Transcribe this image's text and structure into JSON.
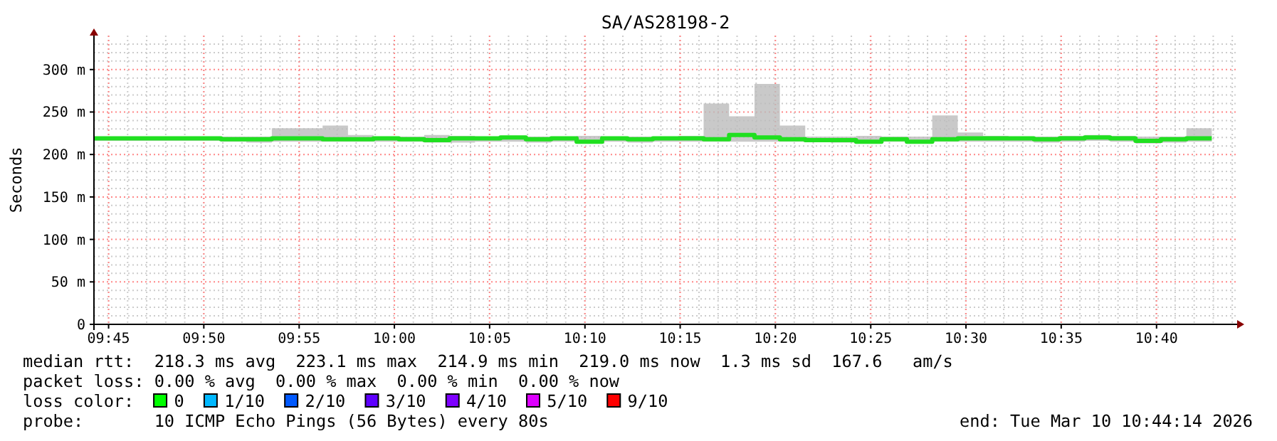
{
  "chart_data": {
    "type": "step",
    "title": "SA/AS28198-2",
    "ylabel": "Seconds",
    "x": [
      9.7372,
      9.7594,
      9.7817,
      9.8039,
      9.8261,
      9.8483,
      9.8705,
      9.8928,
      9.915,
      9.9372,
      9.9594,
      9.9817,
      10.0039,
      10.0261,
      10.0483,
      10.0705,
      10.0928,
      10.115,
      10.1372,
      10.1594,
      10.1817,
      10.2039,
      10.2261,
      10.2483,
      10.2705,
      10.2928,
      10.315,
      10.3372,
      10.3594,
      10.3817,
      10.4039,
      10.4261,
      10.4483,
      10.4705,
      10.4928,
      10.515,
      10.5372,
      10.5594,
      10.5817,
      10.6039,
      10.6261,
      10.6483,
      10.6705,
      10.6928,
      10.715
    ],
    "series": [
      {
        "color": "#20e020",
        "values": [
          219,
          219,
          219,
          219,
          219,
          218,
          218,
          219,
          219,
          218,
          218,
          219,
          218,
          217,
          219,
          219,
          220,
          218,
          219,
          215,
          219,
          218,
          219,
          219,
          218,
          223,
          220,
          218,
          217,
          217,
          215,
          218,
          215,
          218,
          219,
          219,
          219,
          218,
          219,
          220,
          219,
          216,
          218,
          219,
          219
        ],
        "lower": [
          216,
          216,
          216,
          216,
          216,
          215,
          214,
          215,
          215,
          215,
          215,
          215,
          215,
          214,
          214,
          215,
          215,
          214,
          215,
          213,
          215,
          214,
          215,
          215,
          215,
          215,
          215,
          215,
          215,
          214,
          213,
          215,
          213,
          215,
          215,
          215,
          215,
          214,
          215,
          216,
          215,
          213,
          214,
          215,
          215
        ],
        "upper": [
          221,
          221,
          221,
          221,
          221,
          221,
          221,
          231,
          231,
          234,
          223,
          221,
          221,
          223,
          222,
          221,
          222,
          221,
          221,
          222,
          221,
          221,
          221,
          222,
          260,
          245,
          283,
          234,
          221,
          221,
          222,
          221,
          221,
          246,
          226,
          222,
          221,
          221,
          222,
          223,
          222,
          221,
          221,
          231,
          231
        ]
      }
    ],
    "xlim": [
      9.7372,
      10.7372
    ],
    "xticks": [
      {
        "value": 9.75,
        "label": "09:45"
      },
      {
        "value": 9.8333,
        "label": "09:50"
      },
      {
        "value": 9.9167,
        "label": "09:55"
      },
      {
        "value": 10,
        "label": "10:00"
      },
      {
        "value": 10.0833,
        "label": "10:05"
      },
      {
        "value": 10.1667,
        "label": "10:10"
      },
      {
        "value": 10.25,
        "label": "10:15"
      },
      {
        "value": 10.3333,
        "label": "10:20"
      },
      {
        "value": 10.4167,
        "label": "10:25"
      },
      {
        "value": 10.5,
        "label": "10:30"
      },
      {
        "value": 10.5833,
        "label": "10:35"
      },
      {
        "value": 10.6667,
        "label": "10:40"
      }
    ],
    "ylim": [
      0,
      340
    ],
    "yticks": [
      0,
      {
        "value": 50,
        "label": "50 m"
      },
      {
        "value": 100,
        "label": "100 m"
      },
      {
        "value": 150,
        "label": "150 m"
      },
      {
        "value": 200,
        "label": "200 m"
      },
      {
        "value": 250,
        "label": "250 m"
      },
      {
        "value": 300,
        "label": "300 m"
      }
    ],
    "grid": true,
    "annotations": [
      "median rtt:  218.3 ms avg  223.1 ms max  214.9 ms min  219.0 ms now  1.3 ms sd  167.6   am/s",
      "packet loss: 0.00 % avg  0.00 % max  0.00 % min  0.00 % now",
      "loss color:",
      "0",
      "1/10",
      "2/10",
      "3/10",
      "4/10",
      "5/10",
      "9/10",
      "probe:       10 ICMP Echo Pings (56 Bytes) every 80s",
      "end: Tue Mar 10 10:44:14 2026"
    ]
  }
}
